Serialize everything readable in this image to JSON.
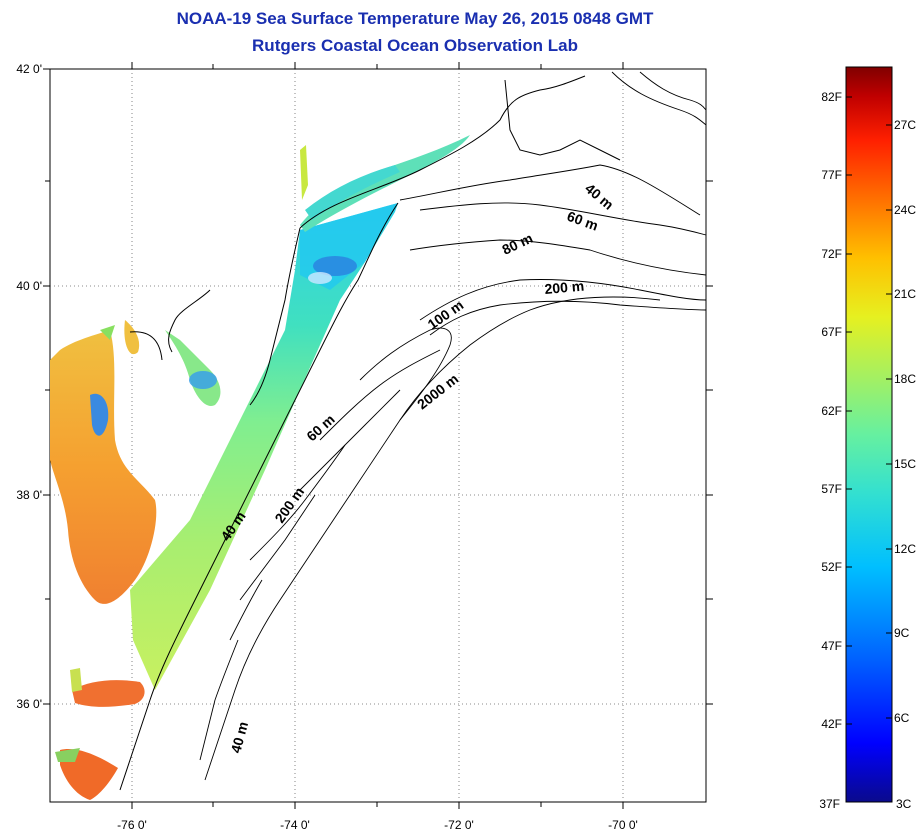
{
  "title": "NOAA-19 Sea Surface Temperature May 26, 2015 0848 GMT",
  "subtitle": "Rutgers Coastal Ocean Observation Lab",
  "map": {
    "lon_labels": [
      "-76 0'",
      "-74 0'",
      "-72 0'",
      "-70 0'"
    ],
    "lat_labels": [
      "42 0'",
      "40 0'",
      "38 0'",
      "36 0'"
    ],
    "depth_labels": [
      "40 m",
      "60 m",
      "80 m",
      "200 m",
      "100 m",
      "2000 m",
      "60 m",
      "200 m",
      "40 m",
      "40 m"
    ],
    "land_color": "#ffffff",
    "grid": "dotted"
  },
  "colorbar": {
    "fahrenheit": [
      "82F",
      "77F",
      "72F",
      "67F",
      "62F",
      "57F",
      "52F",
      "47F",
      "42F",
      "37F"
    ],
    "celsius": [
      "27C",
      "24C",
      "21C",
      "18C",
      "15C",
      "12C",
      "9C",
      "6C",
      "3C"
    ],
    "colors": [
      "#0a0a8c",
      "#0000ff",
      "#0066ff",
      "#00bfff",
      "#33e0d0",
      "#66f0a0",
      "#a6f060",
      "#e6f020",
      "#ffc000",
      "#ff7000",
      "#ff2000",
      "#c00000",
      "#800000"
    ]
  }
}
